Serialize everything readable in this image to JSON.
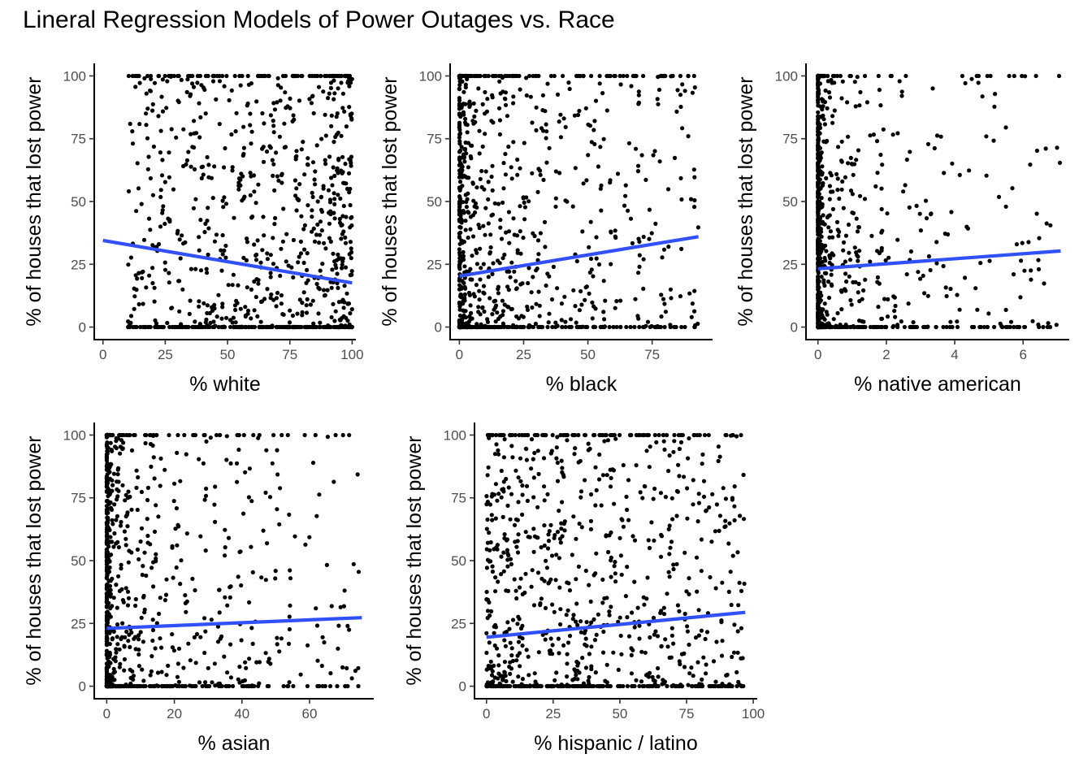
{
  "page_title": "Lineral Regression Models of Power Outages vs. Race",
  "colors": {
    "points": "#000000",
    "fit_line": "#3050F8",
    "axis": "#000000",
    "tick_text": "#4d4d4d"
  },
  "chart_data": [
    {
      "type": "scatter",
      "id": "white",
      "title": "",
      "xlabel": "% white",
      "ylabel": "% of houses that lost power",
      "xlim": [
        -3.5,
        101.5
      ],
      "ylim": [
        -5,
        105
      ],
      "xticks": [
        0,
        25,
        50,
        75,
        100
      ],
      "yticks": [
        0,
        25,
        50,
        75,
        100
      ],
      "fit_line": {
        "x": [
          0,
          100
        ],
        "y": [
          34.5,
          17.6
        ]
      },
      "point_gen": {
        "n": 950,
        "xmin": 0,
        "xmax": 100,
        "xskew": 0.7,
        "ytop_frac": 0.09,
        "yzero_frac": 0.22,
        "yskew": 1.3,
        "seed": 11
      }
    },
    {
      "type": "scatter",
      "id": "black",
      "title": "",
      "xlabel": "% black",
      "ylabel": "% of houses that lost power",
      "xlim": [
        -3.6,
        98.5
      ],
      "ylim": [
        -5,
        105
      ],
      "xticks": [
        0,
        25,
        50,
        75
      ],
      "yticks": [
        0,
        25,
        50,
        75,
        100
      ],
      "fit_line": {
        "x": [
          0,
          93
        ],
        "y": [
          20.3,
          36.0
        ]
      },
      "point_gen": {
        "n": 950,
        "xmin": 0,
        "xmax": 93,
        "xskew": 2.6,
        "ytop_frac": 0.09,
        "yzero_frac": 0.22,
        "yskew": 1.3,
        "seed": 23
      }
    },
    {
      "type": "scatter",
      "id": "native_american",
      "title": "",
      "xlabel": "% native american",
      "ylabel": "% of houses that lost power",
      "xlim": [
        -0.35,
        7.35
      ],
      "ylim": [
        -5,
        105
      ],
      "xticks": [
        0,
        2,
        4,
        6
      ],
      "yticks": [
        0,
        25,
        50,
        75,
        100
      ],
      "fit_line": {
        "x": [
          0,
          7.1
        ],
        "y": [
          23.2,
          30.3
        ]
      },
      "point_gen": {
        "n": 950,
        "xmin": 0,
        "xmax": 7.1,
        "xskew": 6.0,
        "ytop_frac": 0.09,
        "yzero_frac": 0.22,
        "yskew": 1.3,
        "seed": 37
      }
    },
    {
      "type": "scatter",
      "id": "asian",
      "title": "",
      "xlabel": "% asian",
      "ylabel": "% of houses that lost power",
      "xlim": [
        -3.7,
        79.0
      ],
      "ylim": [
        -5,
        105
      ],
      "xticks": [
        0,
        20,
        40,
        60
      ],
      "yticks": [
        0,
        25,
        50,
        75,
        100
      ],
      "fit_line": {
        "x": [
          0,
          75.5
        ],
        "y": [
          23.0,
          27.3
        ]
      },
      "point_gen": {
        "n": 950,
        "xmin": 0,
        "xmax": 75.5,
        "xskew": 4.5,
        "ytop_frac": 0.09,
        "yzero_frac": 0.22,
        "yskew": 1.3,
        "seed": 41
      }
    },
    {
      "type": "scatter",
      "id": "hispanic_latino",
      "title": "",
      "xlabel": "% hispanic / latino",
      "ylabel": "% of houses that lost power",
      "xlim": [
        -4.5,
        101.5
      ],
      "ylim": [
        -5,
        105
      ],
      "xticks": [
        0,
        25,
        50,
        75,
        100
      ],
      "yticks": [
        0,
        25,
        50,
        75,
        100
      ],
      "fit_line": {
        "x": [
          0,
          97
        ],
        "y": [
          19.5,
          29.4
        ]
      },
      "point_gen": {
        "n": 950,
        "xmin": 0,
        "xmax": 97,
        "xskew": 1.4,
        "ytop_frac": 0.09,
        "yzero_frac": 0.22,
        "yskew": 1.3,
        "seed": 53
      }
    }
  ]
}
